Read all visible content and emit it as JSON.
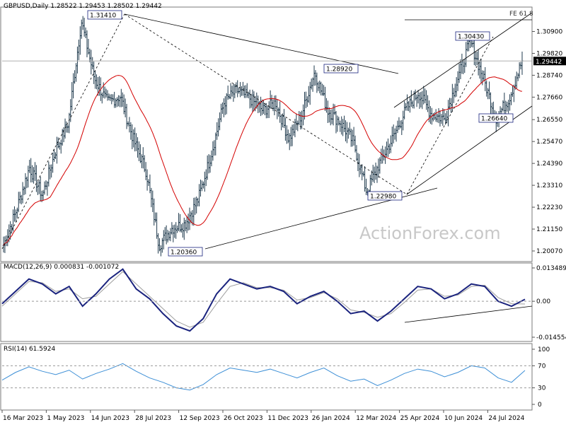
{
  "header": {
    "symbol": "GBPUSD,Daily",
    "ohlc": "1.28522 1.29453 1.28502 1.29442",
    "macd_label": "MACD(12,26,9) 0.000831 -0.001072",
    "rsi_label": "RSI(14) 61.5924",
    "fe_label": "FE 61.8",
    "watermark": "ActionForex.com"
  },
  "colors": {
    "price_bars": "#1f3a4d",
    "ma": "#d40000",
    "macd": "#1a237e",
    "signal": "#9e9e9e",
    "rsi": "#3d8fd6",
    "current_price_bg": "#000000"
  },
  "chart_data": [
    {
      "type": "ohlc",
      "name": "price",
      "ylim": [
        1.2007,
        1.3165
      ],
      "y_ticks": [
        "1.30900",
        "1.29820",
        "1.28740",
        "1.27660",
        "1.26550",
        "1.25470",
        "1.24390",
        "1.23310",
        "1.22230",
        "1.21150",
        "1.20070"
      ],
      "current_price": "1.29442",
      "x_ticks": [
        "16 Mar 2023",
        "1 May 2023",
        "14 Jun 2023",
        "28 Jul 2023",
        "12 Sep 2023",
        "26 Oct 2023",
        "11 Dec 2023",
        "26 Jan 2024",
        "12 Mar 2024",
        "25 Apr 2024",
        "10 Jun 2024",
        "24 Jul 2024"
      ],
      "pivots": [
        {
          "label": "1.31410",
          "value": 1.3141
        },
        {
          "label": "1.28920",
          "value": 1.2892
        },
        {
          "label": "1.30430",
          "value": 1.3043
        },
        {
          "label": "1.26640",
          "value": 1.2664
        },
        {
          "label": "1.22980",
          "value": 1.2298
        },
        {
          "label": "1.20360",
          "value": 1.2036
        }
      ],
      "key_points": [
        1.2035,
        1.221,
        1.242,
        1.228,
        1.25,
        1.264,
        1.3141,
        1.286,
        1.274,
        1.277,
        1.256,
        1.24,
        1.2036,
        1.212,
        1.214,
        1.226,
        1.248,
        1.274,
        1.28,
        1.276,
        1.27,
        1.274,
        1.256,
        1.268,
        1.2892,
        1.27,
        1.264,
        1.254,
        1.2298,
        1.244,
        1.256,
        1.27,
        1.279,
        1.268,
        1.266,
        1.285,
        1.3043,
        1.286,
        1.2664,
        1.276,
        1.2944
      ]
    },
    {
      "type": "line",
      "name": "MACD(12,26,9)",
      "ylim": [
        -0.014554,
        0.013489
      ],
      "y_ticks": [
        "0.013489",
        "0.00",
        "-0.014554"
      ],
      "macd": [
        -0.001,
        0.004,
        0.009,
        0.007,
        0.003,
        0.006,
        -0.002,
        0.003,
        0.009,
        0.013,
        0.005,
        0.001,
        -0.005,
        -0.01,
        -0.012,
        -0.007,
        0.003,
        0.009,
        0.007,
        0.005,
        0.006,
        0.004,
        -0.001,
        0.002,
        0.004,
        0.0,
        -0.005,
        -0.004,
        -0.008,
        -0.004,
        0.001,
        0.006,
        0.005,
        0.001,
        0.003,
        0.007,
        0.006,
        0.0,
        -0.002,
        0.0008
      ],
      "signal": [
        -0.002,
        0.003,
        0.008,
        0.0075,
        0.004,
        0.005,
        0.001,
        0.002,
        0.007,
        0.012,
        0.007,
        0.002,
        -0.003,
        -0.008,
        -0.0105,
        -0.0085,
        -0.001,
        0.006,
        0.0075,
        0.0055,
        0.0055,
        0.0045,
        0.0005,
        0.0015,
        0.0035,
        0.001,
        -0.0035,
        -0.0045,
        -0.0065,
        -0.005,
        -0.0005,
        0.0045,
        0.005,
        0.002,
        0.0025,
        0.006,
        0.0065,
        0.0015,
        -0.001,
        -0.0011
      ]
    },
    {
      "type": "line",
      "name": "RSI(14)",
      "ylim": [
        0,
        100
      ],
      "y_ticks": [
        "100",
        "70",
        "30",
        "0"
      ],
      "values": [
        44,
        58,
        68,
        60,
        54,
        62,
        46,
        56,
        64,
        74,
        60,
        48,
        40,
        30,
        26,
        36,
        54,
        66,
        62,
        58,
        64,
        56,
        48,
        58,
        66,
        52,
        42,
        46,
        34,
        44,
        56,
        64,
        60,
        50,
        58,
        70,
        66,
        48,
        40,
        61.6
      ]
    }
  ]
}
